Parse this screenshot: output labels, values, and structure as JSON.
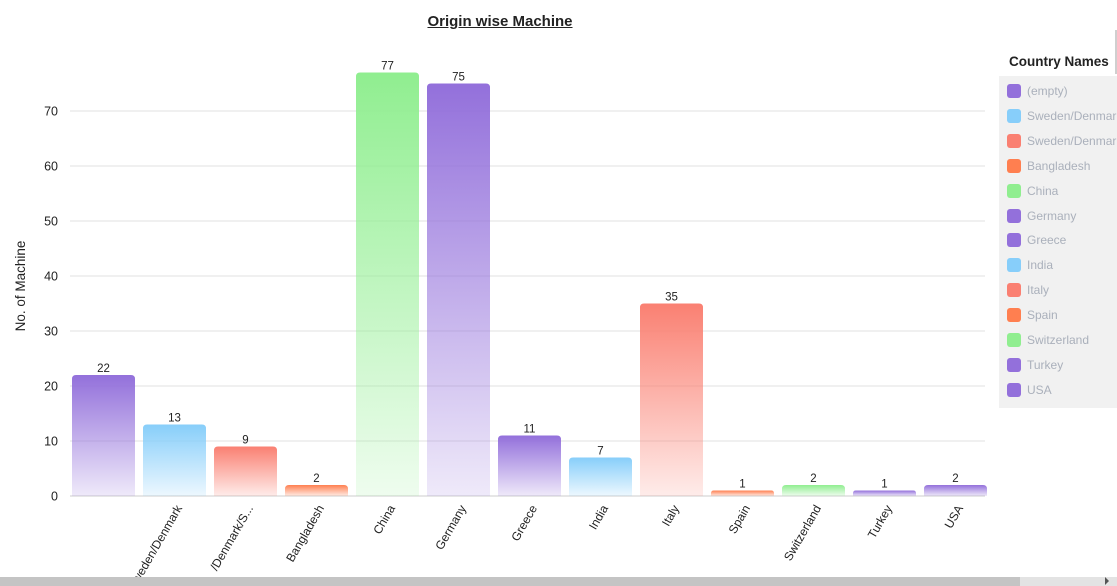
{
  "chart_data": {
    "type": "bar",
    "title": "Origin wise Machine",
    "xlabel": "",
    "ylabel": "No. of Machine",
    "ylim": [
      0,
      80
    ],
    "yticks": [
      0,
      10,
      20,
      30,
      40,
      50,
      60,
      70
    ],
    "grid": true,
    "legend_placement": "right",
    "categories": [
      "(empty)",
      "Sweden/Denmark",
      "Sweden/Denmark/S...",
      "Bangladesh",
      "China",
      "Germany",
      "Greece",
      "India",
      "Italy",
      "Spain",
      "Switzerland",
      "Turkey",
      "USA"
    ],
    "tick_labels": [
      "",
      "weden/Denmark",
      "/Denmark/S...",
      "Bangladesh",
      "China",
      "Germany",
      "Greece",
      "India",
      "Italy",
      "Spain",
      "Switzerland",
      "Turkey",
      "USA"
    ],
    "values": [
      22,
      13,
      9,
      2,
      77,
      75,
      11,
      7,
      35,
      1,
      2,
      1,
      2
    ],
    "colors": [
      "#9370db",
      "#87cefa",
      "#fa8072",
      "#ff7f50",
      "#90ee90",
      "#9370db",
      "#9370db",
      "#87cefa",
      "#fa8072",
      "#ff7f50",
      "#90ee90",
      "#9370db",
      "#9370db"
    ],
    "legend": {
      "title": "Country Names",
      "items": [
        "(empty)",
        "Sweden/Denmar",
        "Sweden/Denmar",
        "Bangladesh",
        "China",
        "Germany",
        "Greece",
        "India",
        "Italy",
        "Spain",
        "Switzerland",
        "Turkey",
        "USA"
      ]
    }
  }
}
